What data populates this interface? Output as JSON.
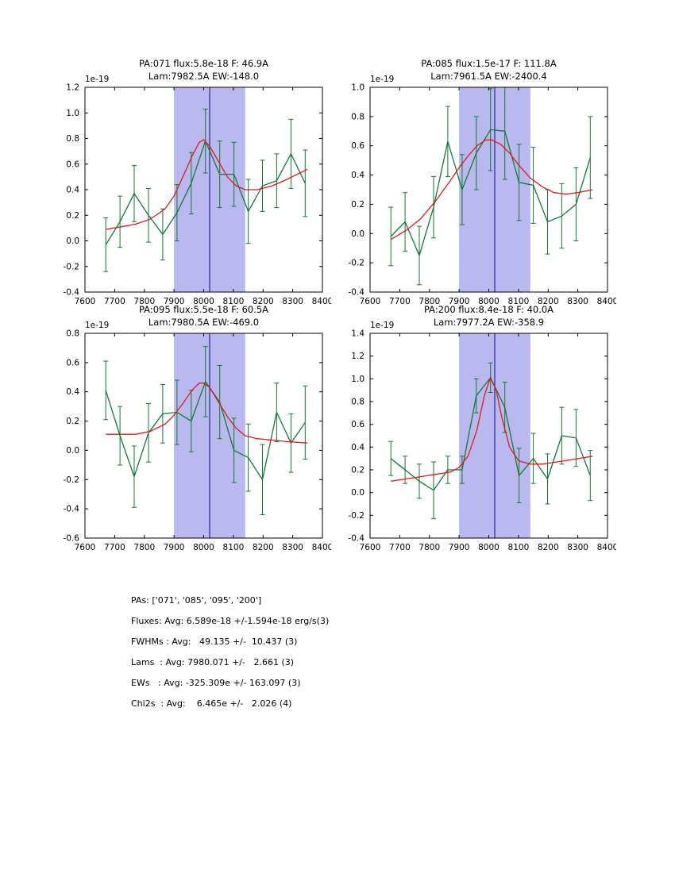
{
  "figure": {
    "background": "#ffffff",
    "colors": {
      "data_series": "#117a33",
      "fit_line": "#dd1c1c",
      "band_fill": "#b9b9f0",
      "center_line": "#26269b",
      "axes": "#000000"
    }
  },
  "chart_data": [
    {
      "type": "line",
      "name": "PA071",
      "title_line1": "PA:071 flux:5.8e-18 F: 46.9A",
      "title_line2": "Lam:7982.5A EW:-148.0",
      "offset_label": "1e-19",
      "xlim": [
        7600,
        8400
      ],
      "ylim": [
        -0.4,
        1.2
      ],
      "xticks": [
        7600,
        7700,
        7800,
        7900,
        8000,
        8100,
        8200,
        8300,
        8400
      ],
      "yticks": [
        -0.4,
        -0.2,
        0.0,
        0.2,
        0.4,
        0.6,
        0.8,
        1.0,
        1.2
      ],
      "band": [
        7900,
        8140
      ],
      "vline": 8020,
      "x": [
        7670,
        7718,
        7766,
        7814,
        7862,
        7910,
        7958,
        8006,
        8054,
        8102,
        8150,
        8198,
        8246,
        8294,
        8342
      ],
      "y": [
        -0.03,
        0.15,
        0.37,
        0.2,
        0.05,
        0.22,
        0.45,
        0.78,
        0.52,
        0.52,
        0.23,
        0.43,
        0.47,
        0.68,
        0.45
      ],
      "yerr": [
        0.21,
        0.2,
        0.22,
        0.21,
        0.2,
        0.22,
        0.24,
        0.25,
        0.26,
        0.25,
        0.25,
        0.2,
        0.21,
        0.27,
        0.26
      ],
      "fit_x": [
        7670,
        7720,
        7770,
        7820,
        7870,
        7900,
        7930,
        7960,
        7985,
        8000,
        8020,
        8050,
        8080,
        8110,
        8140,
        8180,
        8230,
        8280,
        8350
      ],
      "fit_y": [
        0.09,
        0.11,
        0.13,
        0.17,
        0.25,
        0.35,
        0.5,
        0.66,
        0.77,
        0.79,
        0.74,
        0.62,
        0.5,
        0.43,
        0.4,
        0.4,
        0.43,
        0.48,
        0.56
      ]
    },
    {
      "type": "line",
      "name": "PA085",
      "title_line1": "PA:085 flux:1.5e-17 F: 111.8A",
      "title_line2": "Lam:7961.5A EW:-2400.4",
      "offset_label": "1e-19",
      "xlim": [
        7600,
        8400
      ],
      "ylim": [
        -0.4,
        1.0
      ],
      "xticks": [
        7600,
        7700,
        7800,
        7900,
        8000,
        8100,
        8200,
        8300,
        8400
      ],
      "yticks": [
        -0.4,
        -0.2,
        0.0,
        0.2,
        0.4,
        0.6,
        0.8,
        1.0
      ],
      "band": [
        7900,
        8140
      ],
      "vline": 8020,
      "x": [
        7670,
        7718,
        7766,
        7814,
        7862,
        7910,
        7958,
        8006,
        8054,
        8102,
        8150,
        8198,
        8246,
        8294,
        8342
      ],
      "y": [
        -0.02,
        0.08,
        -0.15,
        0.18,
        0.63,
        0.3,
        0.55,
        0.71,
        0.7,
        0.35,
        0.33,
        0.08,
        0.12,
        0.2,
        0.52
      ],
      "yerr": [
        0.2,
        0.2,
        0.2,
        0.21,
        0.24,
        0.24,
        0.25,
        0.28,
        0.33,
        0.26,
        0.26,
        0.22,
        0.22,
        0.25,
        0.28
      ],
      "fit_x": [
        7670,
        7720,
        7770,
        7820,
        7870,
        7900,
        7930,
        7960,
        7990,
        8010,
        8040,
        8070,
        8100,
        8140,
        8180,
        8220,
        8260,
        8300,
        8350
      ],
      "fit_y": [
        -0.04,
        0.02,
        0.1,
        0.22,
        0.36,
        0.45,
        0.53,
        0.6,
        0.64,
        0.64,
        0.61,
        0.55,
        0.47,
        0.38,
        0.32,
        0.28,
        0.27,
        0.28,
        0.3
      ]
    },
    {
      "type": "line",
      "name": "PA095",
      "title_line1": "PA:095 flux:5.5e-18 F: 60.5A",
      "title_line2": "Lam:7980.5A EW:-469.0",
      "offset_label": "1e-19",
      "xlim": [
        7600,
        8400
      ],
      "ylim": [
        -0.6,
        0.8
      ],
      "xticks": [
        7600,
        7700,
        7800,
        7900,
        8000,
        8100,
        8200,
        8300,
        8400
      ],
      "yticks": [
        -0.6,
        -0.4,
        -0.2,
        0.0,
        0.2,
        0.4,
        0.6,
        0.8
      ],
      "band": [
        7900,
        8140
      ],
      "vline": 8020,
      "x": [
        7670,
        7718,
        7766,
        7814,
        7862,
        7910,
        7958,
        8006,
        8054,
        8102,
        8150,
        8198,
        8246,
        8294,
        8342
      ],
      "y": [
        0.41,
        0.1,
        -0.18,
        0.12,
        0.25,
        0.26,
        0.2,
        0.47,
        0.33,
        0.0,
        -0.05,
        -0.2,
        0.26,
        0.05,
        0.19
      ],
      "yerr": [
        0.2,
        0.2,
        0.21,
        0.2,
        0.2,
        0.22,
        0.21,
        0.24,
        0.25,
        0.22,
        0.23,
        0.24,
        0.2,
        0.2,
        0.25
      ],
      "fit_x": [
        7670,
        7720,
        7770,
        7820,
        7870,
        7900,
        7930,
        7960,
        7985,
        8000,
        8020,
        8050,
        8080,
        8110,
        8140,
        8180,
        8230,
        8280,
        8350
      ],
      "fit_y": [
        0.11,
        0.11,
        0.11,
        0.13,
        0.18,
        0.24,
        0.32,
        0.41,
        0.46,
        0.46,
        0.43,
        0.33,
        0.23,
        0.15,
        0.1,
        0.08,
        0.07,
        0.06,
        0.05
      ]
    },
    {
      "type": "line",
      "name": "PA200",
      "title_line1": "PA:200 flux:8.4e-18 F: 40.0A",
      "title_line2": "Lam:7977.2A EW:-358.9",
      "offset_label": "1e-19",
      "xlim": [
        7600,
        8400
      ],
      "ylim": [
        -0.4,
        1.4
      ],
      "xticks": [
        7600,
        7700,
        7800,
        7900,
        8000,
        8100,
        8200,
        8300,
        8400
      ],
      "yticks": [
        -0.4,
        -0.2,
        0.0,
        0.2,
        0.4,
        0.6,
        0.8,
        1.0,
        1.2,
        1.4
      ],
      "band": [
        7900,
        8140
      ],
      "vline": 8020,
      "x": [
        7670,
        7718,
        7766,
        7814,
        7862,
        7910,
        7958,
        8006,
        8054,
        8102,
        8150,
        8198,
        8246,
        8294,
        8342
      ],
      "y": [
        0.3,
        0.2,
        0.1,
        0.02,
        0.2,
        0.2,
        0.85,
        1.01,
        0.75,
        0.15,
        0.3,
        0.12,
        0.5,
        0.48,
        0.15
      ],
      "yerr": [
        0.15,
        0.12,
        0.15,
        0.25,
        0.12,
        0.12,
        0.15,
        0.13,
        0.22,
        0.24,
        0.22,
        0.22,
        0.25,
        0.25,
        0.22
      ],
      "fit_x": [
        7670,
        7720,
        7770,
        7820,
        7870,
        7900,
        7930,
        7960,
        7985,
        8005,
        8025,
        8045,
        8070,
        8100,
        8140,
        8180,
        8230,
        8280,
        8350
      ],
      "fit_y": [
        0.1,
        0.12,
        0.14,
        0.16,
        0.18,
        0.22,
        0.32,
        0.55,
        0.85,
        1.01,
        0.9,
        0.65,
        0.4,
        0.28,
        0.25,
        0.25,
        0.27,
        0.29,
        0.32
      ]
    }
  ],
  "footer": {
    "lines": [
      "PAs: ['071', '085', '095', '200']",
      "Fluxes: Avg: 6.589e-18 +/-1.594e-18 erg/s(3)",
      "FWHMs : Avg:   49.135 +/-  10.437 (3)",
      "Lams  : Avg: 7980.071 +/-   2.661 (3)",
      "EWs   : Avg: -325.309e +/- 163.097 (3)",
      "Chi2s  : Avg:    6.465e +/-   2.026 (4)"
    ]
  }
}
